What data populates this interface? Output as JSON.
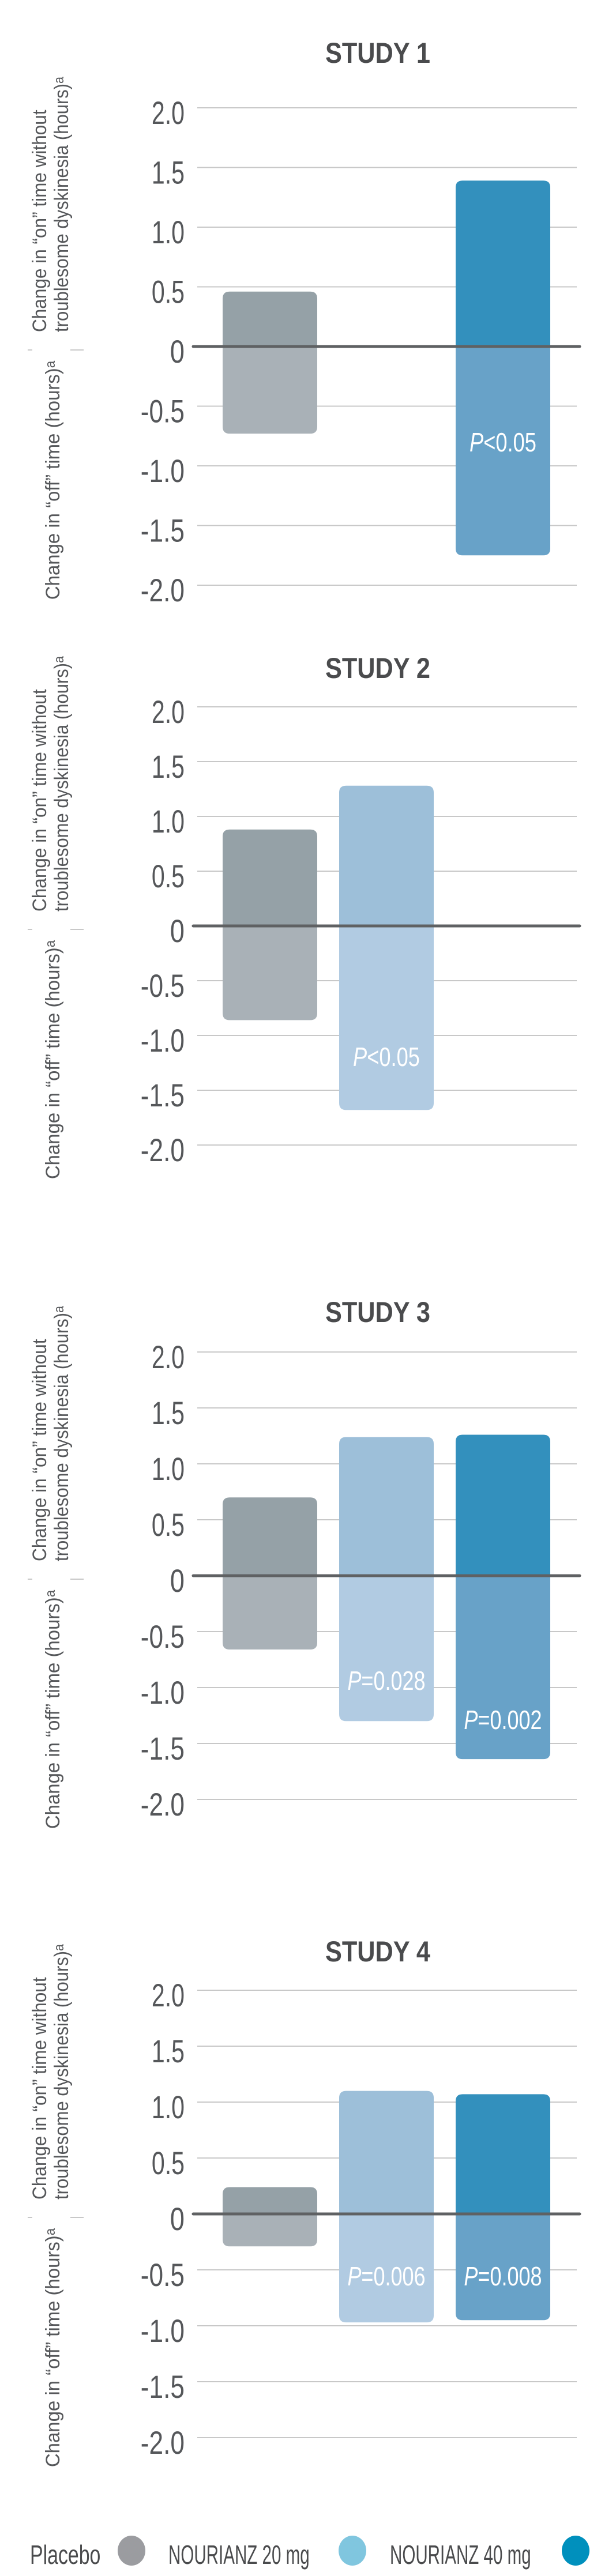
{
  "legend": {
    "items": [
      {
        "label": "Placebo",
        "color": "#9b9ca0"
      },
      {
        "label": "NOURIANZ 20 mg",
        "color": "#80c6df"
      },
      {
        "label": "NOURIANZ 40 mg",
        "color": "#0090bd"
      }
    ]
  },
  "bar_colors": {
    "Placebo": {
      "on": "#95a1a7",
      "off": "#a9b1b7"
    },
    "NOURIANZ 20 mg": {
      "on": "#9dbfd9",
      "off": "#b1cbe2"
    },
    "NOURIANZ 40 mg": {
      "on": "#3390bd",
      "off": "#68a2c8"
    }
  },
  "colors": {
    "zero_line": "#5f6163",
    "grid": "#c8c8c8",
    "text": "#4a4b4d"
  },
  "chart_data": [
    {
      "type": "bar",
      "title": "STUDY 1",
      "ylabel_on": [
        "Change in “on” time without",
        "troublesome dyskinesia (hours)ᵃ"
      ],
      "ylabel_off": "Change in “off” time (hours)ᵃ",
      "ylim": [
        -2.0,
        2.0
      ],
      "yticks": [
        "2.0",
        "1.5",
        "1.0",
        "0.5",
        "0",
        "-0.5",
        "-1.0",
        "-1.5",
        "-2.0"
      ],
      "grid": true,
      "categories": [
        "Placebo",
        "NOURIANZ 40 mg"
      ],
      "series": [
        {
          "name": "Placebo",
          "on": 0.46,
          "off": -0.73,
          "p_label": ""
        },
        {
          "name": "NOURIANZ 40 mg",
          "on": 1.39,
          "off": -1.75,
          "p_label": "<0.05"
        }
      ]
    },
    {
      "type": "bar",
      "title": "STUDY 2",
      "ylabel_on": [
        "Change in “on” time without",
        "troublesome dyskinesia (hours)ᵃ"
      ],
      "ylabel_off": "Change in “off” time (hours)ᵃ",
      "ylim": [
        -2.0,
        2.0
      ],
      "yticks": [
        "2.0",
        "1.5",
        "1.0",
        "0.5",
        "0",
        "-0.5",
        "-1.0",
        "-1.5",
        "-2.0"
      ],
      "grid": true,
      "categories": [
        "Placebo",
        "NOURIANZ 20 mg"
      ],
      "series": [
        {
          "name": "Placebo",
          "on": 0.88,
          "off": -0.86,
          "p_label": ""
        },
        {
          "name": "NOURIANZ 20 mg",
          "on": 1.28,
          "off": -1.68,
          "p_label": "<0.05"
        }
      ]
    },
    {
      "type": "bar",
      "title": "STUDY 3",
      "ylabel_on": [
        "Change in “on” time without",
        "troublesome dyskinesia (hours)ᵃ"
      ],
      "ylabel_off": "Change in “off” time (hours)ᵃ",
      "ylim": [
        -2.0,
        2.0
      ],
      "yticks": [
        "2.0",
        "1.5",
        "1.0",
        "0.5",
        "0",
        "-0.5",
        "-1.0",
        "-1.5",
        "-2.0"
      ],
      "grid": true,
      "categories": [
        "Placebo",
        "NOURIANZ 20 mg",
        "NOURIANZ 40 mg"
      ],
      "series": [
        {
          "name": "Placebo",
          "on": 0.7,
          "off": -0.66,
          "p_label": ""
        },
        {
          "name": "NOURIANZ 20 mg",
          "on": 1.24,
          "off": -1.3,
          "p_label": "=0.028"
        },
        {
          "name": "NOURIANZ 40 mg",
          "on": 1.26,
          "off": -1.64,
          "p_label": "=0.002"
        }
      ]
    },
    {
      "type": "bar",
      "title": "STUDY 4",
      "ylabel_on": [
        "Change in “on” time without",
        "troublesome dyskinesia (hours)ᵃ"
      ],
      "ylabel_off": "Change in “off” time (hours)ᵃ",
      "ylim": [
        -2.0,
        2.0
      ],
      "yticks": [
        "2.0",
        "1.5",
        "1.0",
        "0.5",
        "0",
        "-0.5",
        "-1.0",
        "-1.5",
        "-2.0"
      ],
      "grid": true,
      "categories": [
        "Placebo",
        "NOURIANZ 20 mg",
        "NOURIANZ 40 mg"
      ],
      "series": [
        {
          "name": "Placebo",
          "on": 0.24,
          "off": -0.29,
          "p_label": ""
        },
        {
          "name": "NOURIANZ 20 mg",
          "on": 1.1,
          "off": -0.97,
          "p_label": "=0.006"
        },
        {
          "name": "NOURIANZ 40 mg",
          "on": 1.07,
          "off": -0.95,
          "p_label": "=0.008"
        }
      ]
    }
  ],
  "p_prefix": "P"
}
